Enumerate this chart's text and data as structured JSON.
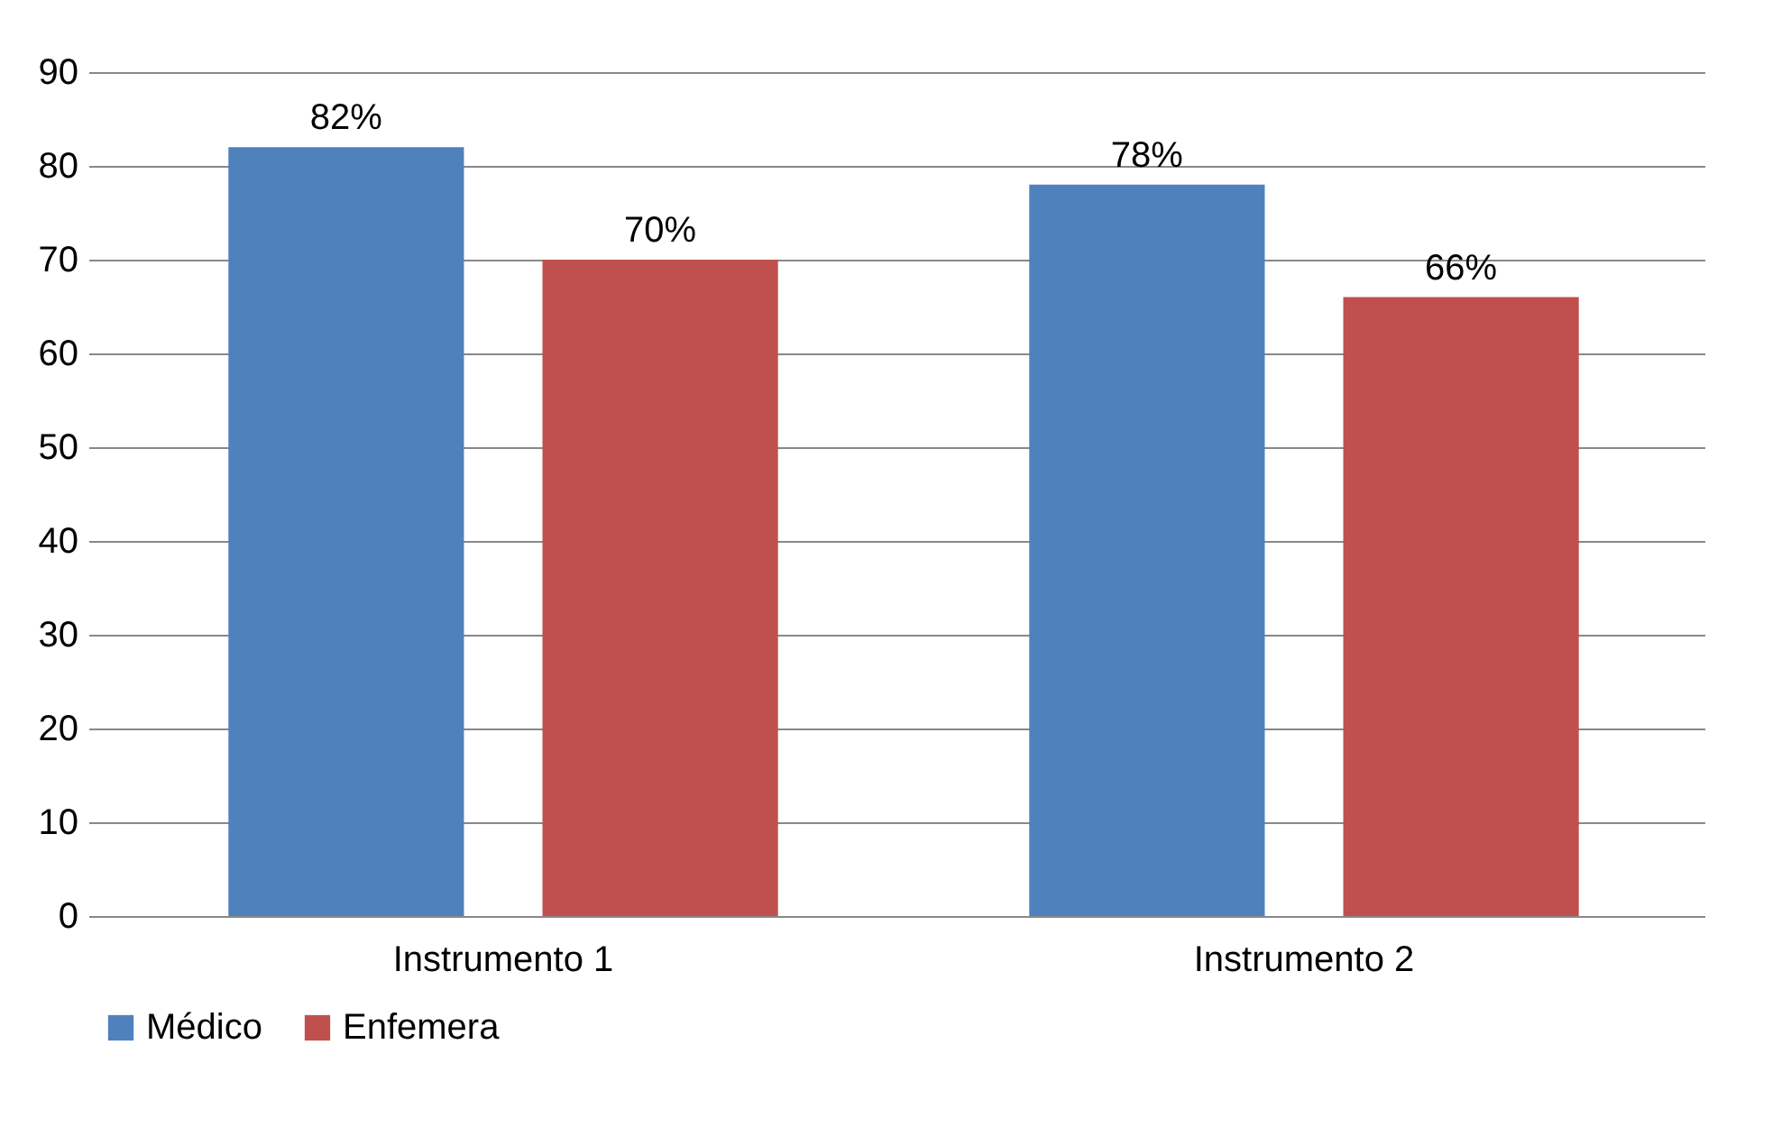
{
  "chart_data": {
    "type": "bar",
    "categories": [
      "Instrumento 1",
      "Instrumento 2"
    ],
    "series": [
      {
        "name": "Médico",
        "color": "#4f81bd",
        "values": [
          82,
          78
        ],
        "value_labels": [
          "82%",
          "78%"
        ]
      },
      {
        "name": "Enfemera",
        "color": "#c0504d",
        "values": [
          70,
          66
        ],
        "value_labels": [
          "70%",
          "66%"
        ]
      }
    ],
    "ylim": [
      0,
      90
    ],
    "yticks": [
      0,
      10,
      20,
      30,
      40,
      50,
      60,
      70,
      80,
      90
    ],
    "grid": "y",
    "legend": "bottom"
  }
}
